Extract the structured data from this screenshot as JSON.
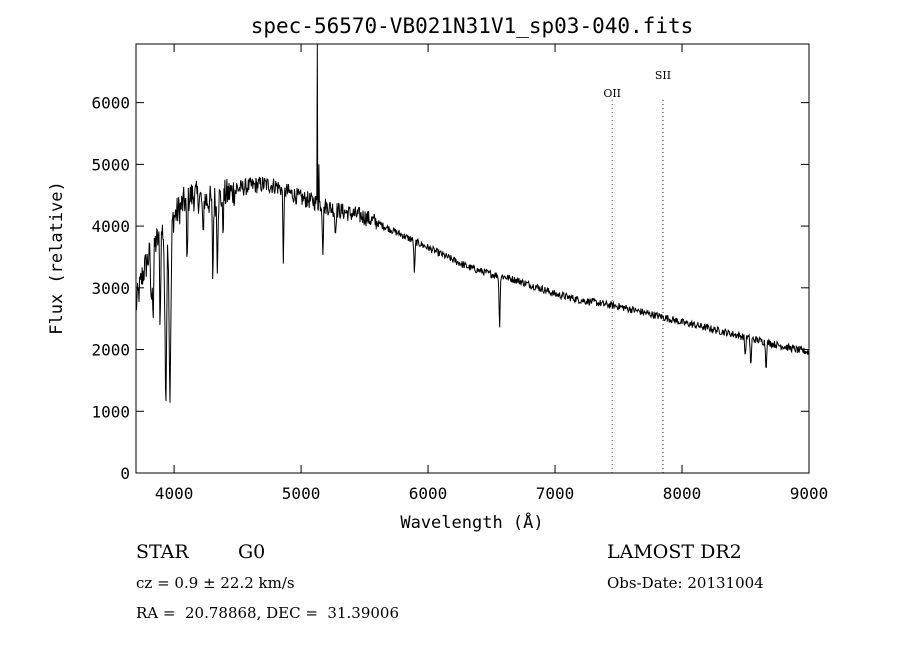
{
  "chart_data": {
    "type": "line",
    "title": "spec-56570-VB021N31V1_sp03-040.fits",
    "xlabel": "Wavelength (Å)",
    "ylabel": "Flux (relative)",
    "xlim": [
      3700,
      9000
    ],
    "ylim": [
      0,
      6950
    ],
    "x_ticks": [
      4000,
      5000,
      6000,
      7000,
      8000,
      9000
    ],
    "x_tick_labels": [
      "4000",
      "5000",
      "6000",
      "7000",
      "8000",
      "9000"
    ],
    "y_ticks": [
      0,
      1000,
      2000,
      3000,
      4000,
      5000,
      6000
    ],
    "y_tick_labels": [
      "0",
      "1000",
      "2000",
      "3000",
      "4000",
      "5000",
      "6000"
    ],
    "grid": false,
    "line_color": "#000000",
    "continuum": [
      [
        3700,
        2700
      ],
      [
        3750,
        3200
      ],
      [
        3800,
        3500
      ],
      [
        3850,
        3700
      ],
      [
        3900,
        3900
      ],
      [
        3950,
        4050
      ],
      [
        4000,
        4150
      ],
      [
        4050,
        4300
      ],
      [
        4100,
        4450
      ],
      [
        4150,
        4500
      ],
      [
        4200,
        4450
      ],
      [
        4300,
        4400
      ],
      [
        4400,
        4500
      ],
      [
        4500,
        4600
      ],
      [
        4600,
        4650
      ],
      [
        4700,
        4680
      ],
      [
        4800,
        4650
      ],
      [
        4900,
        4550
      ],
      [
        5000,
        4450
      ],
      [
        5100,
        4400
      ],
      [
        5200,
        4320
      ],
      [
        5300,
        4250
      ],
      [
        5400,
        4200
      ],
      [
        5500,
        4150
      ],
      [
        5600,
        4050
      ],
      [
        5700,
        3950
      ],
      [
        5800,
        3850
      ],
      [
        5900,
        3750
      ],
      [
        6000,
        3650
      ],
      [
        6100,
        3550
      ],
      [
        6200,
        3450
      ],
      [
        6300,
        3350
      ],
      [
        6400,
        3280
      ],
      [
        6500,
        3220
      ],
      [
        6600,
        3180
      ],
      [
        6700,
        3120
      ],
      [
        6800,
        3050
      ],
      [
        6900,
        2980
      ],
      [
        7000,
        2900
      ],
      [
        7100,
        2850
      ],
      [
        7200,
        2800
      ],
      [
        7300,
        2770
      ],
      [
        7400,
        2730
      ],
      [
        7500,
        2700
      ],
      [
        7600,
        2650
      ],
      [
        7700,
        2600
      ],
      [
        7800,
        2550
      ],
      [
        7900,
        2500
      ],
      [
        8000,
        2440
      ],
      [
        8100,
        2400
      ],
      [
        8200,
        2350
      ],
      [
        8300,
        2300
      ],
      [
        8400,
        2250
      ],
      [
        8500,
        2200
      ],
      [
        8600,
        2150
      ],
      [
        8700,
        2100
      ],
      [
        8800,
        2050
      ],
      [
        8900,
        2000
      ],
      [
        9000,
        1960
      ]
    ],
    "absorption_lines": [
      {
        "x": 3820,
        "depth": 900
      },
      {
        "x": 3835,
        "depth": 1100
      },
      {
        "x": 3890,
        "depth": 1400
      },
      {
        "x": 3934,
        "depth": 2700
      },
      {
        "x": 3968,
        "depth": 2800
      },
      {
        "x": 4102,
        "depth": 1100
      },
      {
        "x": 4227,
        "depth": 600
      },
      {
        "x": 4305,
        "depth": 1200
      },
      {
        "x": 4340,
        "depth": 1000
      },
      {
        "x": 4384,
        "depth": 500
      },
      {
        "x": 4861,
        "depth": 1100
      },
      {
        "x": 5172,
        "depth": 700
      },
      {
        "x": 5270,
        "depth": 400
      },
      {
        "x": 5893,
        "depth": 500
      },
      {
        "x": 6563,
        "depth": 800
      },
      {
        "x": 8498,
        "depth": 300
      },
      {
        "x": 8542,
        "depth": 450
      },
      {
        "x": 8662,
        "depth": 400
      }
    ],
    "emission_spikes": [
      {
        "x": 5128,
        "peak": 6950
      },
      {
        "x": 5140,
        "peak": 5000
      }
    ],
    "reference_lines": [
      {
        "label": "OII",
        "x": 7450,
        "color": "#c0392b"
      },
      {
        "label": "SII",
        "x": 7850,
        "color": "#1a1a8c"
      }
    ]
  },
  "info": {
    "object_class": "STAR",
    "subclass": "G0",
    "survey": "LAMOST DR2",
    "cz": "cz = 0.9 ± 22.2 km/s",
    "obs_date": "Obs-Date: 20131004",
    "coords": "RA =  20.78868, DEC =  31.39006"
  }
}
